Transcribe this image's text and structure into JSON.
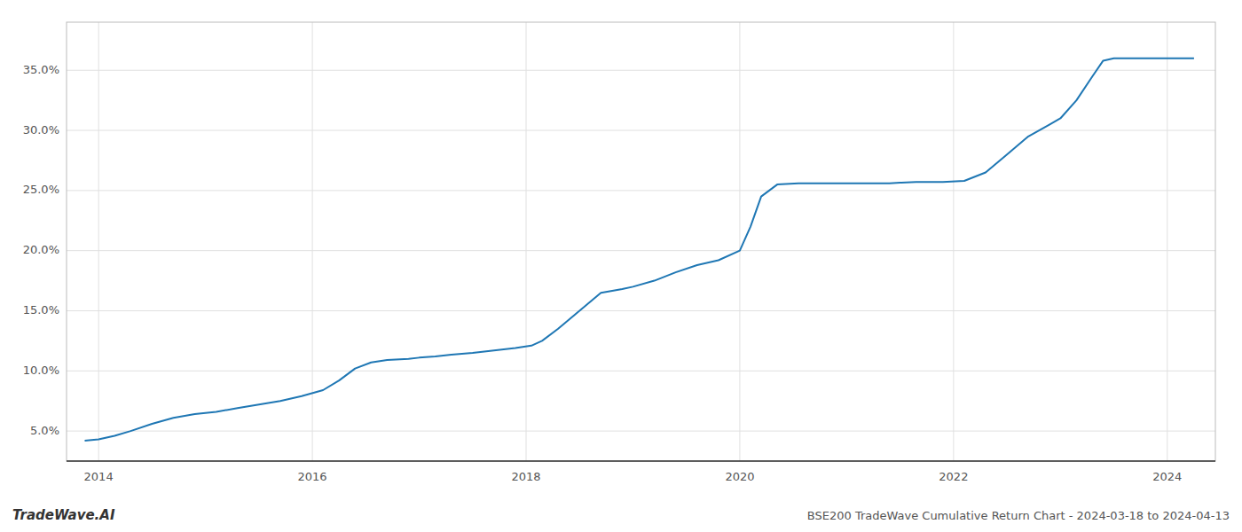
{
  "chart_data": {
    "type": "line",
    "title": "BSE200 TradeWave Cumulative Return Chart - 2024-03-18 to 2024-04-13",
    "annotations": [
      "TradeWave.AI"
    ],
    "color": "#1f77b4",
    "grid": true,
    "x": [
      2013.87,
      2014.0,
      2014.15,
      2014.3,
      2014.5,
      2014.7,
      2014.9,
      2015.1,
      2015.3,
      2015.5,
      2015.7,
      2015.9,
      2016.1,
      2016.25,
      2016.4,
      2016.55,
      2016.7,
      2016.9,
      2017.0,
      2017.15,
      2017.3,
      2017.5,
      2017.7,
      2017.9,
      2018.05,
      2018.15,
      2018.3,
      2018.5,
      2018.7,
      2018.9,
      2019.0,
      2019.2,
      2019.4,
      2019.6,
      2019.8,
      2020.0,
      2020.1,
      2020.2,
      2020.35,
      2020.55,
      2020.75,
      2020.9,
      2021.1,
      2021.3,
      2021.4,
      2021.5,
      2021.65,
      2021.9,
      2022.1,
      2022.3,
      2022.5,
      2022.7,
      2022.9,
      2023.0,
      2023.15,
      2023.3,
      2023.4,
      2023.5,
      2023.55,
      2023.65,
      2023.75,
      2023.85,
      2023.95,
      2024.0,
      2024.1,
      2024.25
    ],
    "values": [
      4.2,
      4.3,
      4.6,
      5.0,
      5.6,
      6.1,
      6.4,
      6.6,
      6.9,
      7.2,
      7.5,
      7.9,
      8.4,
      9.2,
      10.2,
      10.7,
      10.9,
      11.0,
      11.1,
      11.2,
      11.35,
      11.5,
      11.7,
      11.9,
      12.1,
      12.5,
      13.5,
      15.0,
      16.5,
      16.8,
      17.0,
      17.5,
      18.2,
      18.8,
      19.2,
      20.0,
      22.0,
      24.5,
      25.5,
      25.6,
      25.6,
      25.6,
      25.6,
      25.6,
      25.6,
      25.65,
      25.7,
      25.7,
      25.8,
      26.5,
      28.0,
      29.5,
      30.5,
      31.0,
      32.5,
      34.5,
      35.8,
      36.0,
      36.0,
      36.0,
      36.0,
      36.0,
      36.0,
      36.0,
      36.0,
      36.0
    ],
    "xlim": [
      2013.7,
      2024.45
    ],
    "ylim": [
      2.5,
      39.0
    ],
    "xticks": [
      2014,
      2016,
      2018,
      2020,
      2022,
      2024
    ],
    "yticks": [
      {
        "value": 5.0,
        "label": "5.0%"
      },
      {
        "value": 10.0,
        "label": "10.0%"
      },
      {
        "value": 15.0,
        "label": "15.0%"
      },
      {
        "value": 20.0,
        "label": "20.0%"
      },
      {
        "value": 25.0,
        "label": "25.0%"
      },
      {
        "value": 30.0,
        "label": "30.0%"
      },
      {
        "value": 35.0,
        "label": "35.0%"
      }
    ]
  }
}
